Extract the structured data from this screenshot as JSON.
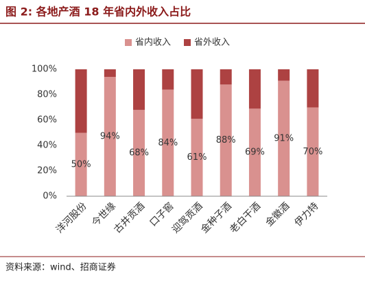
{
  "chart_data": {
    "type": "stacked_bar",
    "title": "图 2: 各地产酒 18 年省内外收入占比",
    "source": "资料来源：wind、招商证券",
    "categories": [
      "洋河股份",
      "今世缘",
      "古井贡酒",
      "口子窖",
      "迎驾贡酒",
      "金种子酒",
      "老白干酒",
      "金徽酒",
      "伊力特"
    ],
    "series": [
      {
        "name": "省内收入",
        "color": "#d9918f",
        "values": [
          50,
          94,
          68,
          84,
          61,
          88,
          69,
          91,
          70
        ],
        "value_labels": [
          "50%",
          "94%",
          "68%",
          "84%",
          "61%",
          "88%",
          "69%",
          "91%",
          "70%"
        ]
      },
      {
        "name": "省外收入",
        "color": "#ad4242",
        "values": [
          50,
          6,
          32,
          16,
          39,
          12,
          31,
          9,
          30
        ]
      }
    ],
    "ylim": [
      0,
      100
    ],
    "yticks": [
      {
        "value": 0,
        "label": "0%"
      },
      {
        "value": 20,
        "label": "20%"
      },
      {
        "value": 40,
        "label": "40%"
      },
      {
        "value": 60,
        "label": "60%"
      },
      {
        "value": 80,
        "label": "80%"
      },
      {
        "value": 100,
        "label": "100%"
      }
    ],
    "legend": "top"
  }
}
